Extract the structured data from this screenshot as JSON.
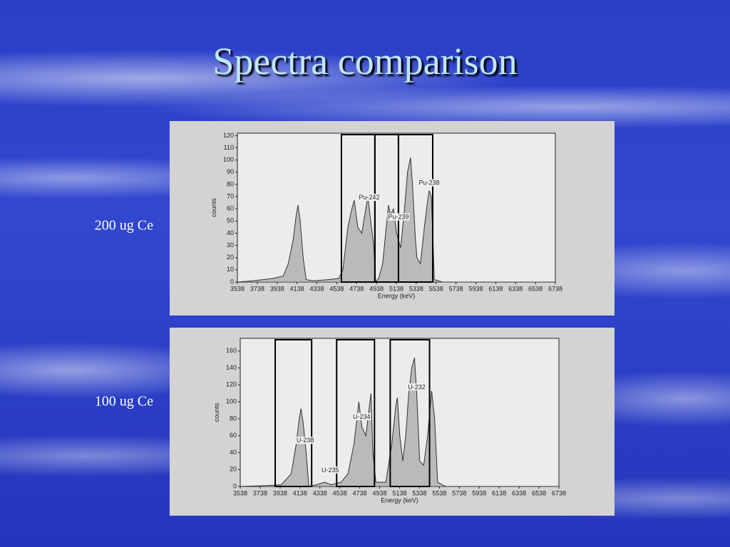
{
  "slide": {
    "title": "Spectra comparison"
  },
  "chart_data": [
    {
      "type": "area",
      "title": "200 ug Ce",
      "xlabel": "Energy (keV)",
      "ylabel": "counts",
      "xlim": [
        3538,
        6738
      ],
      "ylim": [
        0,
        122
      ],
      "xticks": [
        3538,
        3738,
        3938,
        4138,
        4338,
        4538,
        4738,
        4938,
        5138,
        5338,
        5538,
        5738,
        5938,
        6138,
        6338,
        6538,
        6738
      ],
      "yticks": [
        0,
        10,
        20,
        30,
        40,
        50,
        60,
        70,
        80,
        90,
        100,
        110,
        120
      ],
      "regions": [
        [
          4585,
          4922
        ],
        [
          4922,
          5159
        ],
        [
          5159,
          5504
        ]
      ],
      "annotations": [
        {
          "text": "Pu-242",
          "x": 4865,
          "y": 69
        },
        {
          "text": "Pu-239",
          "x": 5159,
          "y": 53
        },
        {
          "text": "Pu-238",
          "x": 5468,
          "y": 81
        }
      ],
      "color": "#333333",
      "x": [
        3538,
        3700,
        3900,
        4000,
        4050,
        4100,
        4130,
        4148,
        4170,
        4200,
        4230,
        4300,
        4450,
        4560,
        4600,
        4650,
        4690,
        4714,
        4750,
        4790,
        4820,
        4851,
        4880,
        4910,
        4930,
        4960,
        5000,
        5030,
        5059,
        5080,
        5109,
        5140,
        5181,
        5220,
        5250,
        5281,
        5300,
        5330,
        5345,
        5380,
        5420,
        5450,
        5468,
        5490,
        5504,
        5520,
        5600,
        6000,
        6738
      ],
      "values": [
        0,
        1,
        3,
        5,
        15,
        35,
        55,
        63,
        50,
        20,
        2,
        1,
        2,
        3,
        10,
        45,
        60,
        67,
        45,
        40,
        55,
        70,
        50,
        30,
        0,
        3,
        15,
        40,
        63,
        55,
        60,
        40,
        28,
        60,
        90,
        102,
        80,
        35,
        20,
        15,
        45,
        65,
        75,
        70,
        40,
        2,
        0,
        0,
        0
      ]
    },
    {
      "type": "area",
      "title": "100 ug Ce",
      "xlabel": "Energy (keV)",
      "ylabel": "counts",
      "xlim": [
        3538,
        6738
      ],
      "ylim": [
        0,
        175
      ],
      "xticks": [
        3538,
        3738,
        3938,
        4138,
        4338,
        4538,
        4738,
        4938,
        5138,
        5338,
        5538,
        5738,
        5938,
        6138,
        6338,
        6538,
        6738
      ],
      "yticks": [
        0,
        20,
        40,
        60,
        80,
        100,
        120,
        140,
        160
      ],
      "regions": [
        [
          3889,
          4255
        ],
        [
          4506,
          4886
        ],
        [
          5044,
          5439
        ]
      ],
      "annotations": [
        {
          "text": "U-238",
          "x": 4190,
          "y": 54
        },
        {
          "text": "U-235",
          "x": 4442,
          "y": 19
        },
        {
          "text": "U-234",
          "x": 4757,
          "y": 82
        },
        {
          "text": "U-232",
          "x": 5310,
          "y": 117
        }
      ],
      "color": "#333333",
      "x": [
        3538,
        3800,
        3950,
        4050,
        4100,
        4130,
        4148,
        4170,
        4200,
        4227,
        4300,
        4385,
        4450,
        4550,
        4620,
        4680,
        4729,
        4760,
        4800,
        4830,
        4851,
        4870,
        4900,
        5000,
        5060,
        5100,
        5116,
        5140,
        5170,
        5200,
        5230,
        5260,
        5288,
        5310,
        5340,
        5380,
        5420,
        5460,
        5490,
        5520,
        5600,
        6738
      ],
      "values": [
        0,
        1,
        2,
        15,
        50,
        80,
        92,
        75,
        40,
        0,
        2,
        5,
        2,
        5,
        15,
        50,
        100,
        70,
        60,
        90,
        110,
        40,
        5,
        5,
        50,
        95,
        105,
        60,
        30,
        60,
        110,
        140,
        152,
        110,
        30,
        25,
        60,
        113,
        80,
        5,
        0,
        0
      ]
    }
  ]
}
